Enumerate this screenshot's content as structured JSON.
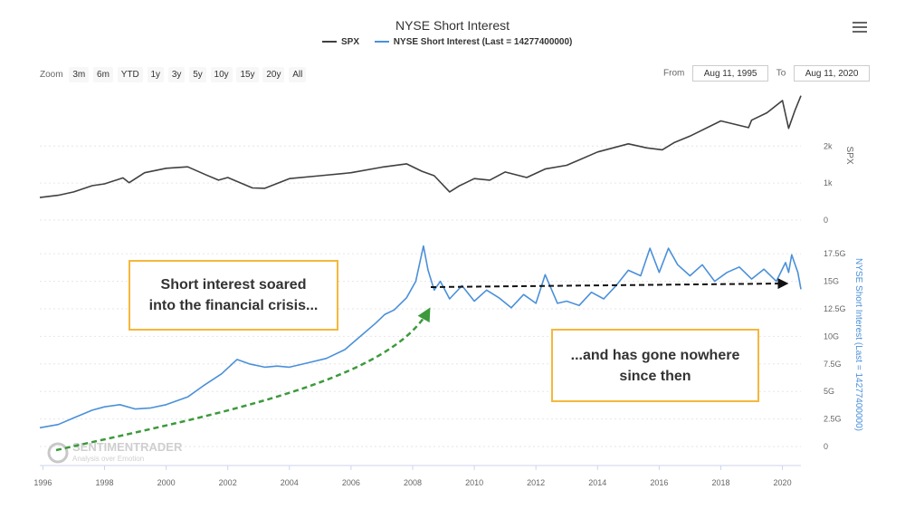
{
  "header": {
    "title": "NYSE Short Interest",
    "menu_icon": "hamburger-menu-icon"
  },
  "legend": {
    "spx_label": "SPX",
    "nyse_label": "NYSE Short Interest (Last = 14277400000)"
  },
  "zoom": {
    "label": "Zoom",
    "buttons": [
      "3m",
      "6m",
      "YTD",
      "1y",
      "3y",
      "5y",
      "10y",
      "15y",
      "20y",
      "All"
    ]
  },
  "range": {
    "from_label": "From",
    "from_value": "Aug 11, 1995",
    "to_label": "To",
    "to_value": "Aug 11, 2020"
  },
  "annotations": {
    "callout1_line1": "Short interest soared",
    "callout1_line2": "into the financial crisis...",
    "callout2_line1": "...and has gone nowhere",
    "callout2_line2": "since then"
  },
  "watermark": {
    "brand": "SENTIMENTRADER",
    "tagline": "Analysis over Emotion"
  },
  "colors": {
    "spx": "#404040",
    "nyse": "#4a90d9",
    "arrow_up": "#3c9a3c",
    "arrow_flat": "#111111",
    "callout_border": "#f5b73b",
    "grid": "#e6e6e6",
    "axis_text": "#666666"
  },
  "chart_data": {
    "type": "line",
    "title": "NYSE Short Interest",
    "x_ticks": [
      "1996",
      "1998",
      "2000",
      "2002",
      "2004",
      "2006",
      "2008",
      "2010",
      "2012",
      "2014",
      "2016",
      "2018",
      "2020"
    ],
    "x_range": [
      1995.9,
      2020.6
    ],
    "panels": [
      {
        "name": "SPX",
        "ylabel": "SPX",
        "ylim": [
          0,
          3500
        ],
        "ticks": [
          {
            "value": 0,
            "label": "0"
          },
          {
            "value": 1000,
            "label": "1k"
          },
          {
            "value": 2000,
            "label": "2k"
          }
        ],
        "series": {
          "name": "SPX",
          "x": [
            1995.9,
            1996.5,
            1997.0,
            1997.6,
            1998.0,
            1998.6,
            1998.8,
            1999.3,
            2000.0,
            2000.7,
            2001.3,
            2001.7,
            2002.0,
            2002.8,
            2003.2,
            2004.0,
            2005.0,
            2006.0,
            2007.0,
            2007.8,
            2008.3,
            2008.7,
            2009.2,
            2009.5,
            2010.0,
            2010.5,
            2011.0,
            2011.7,
            2012.3,
            2013.0,
            2014.0,
            2015.0,
            2015.6,
            2016.1,
            2016.5,
            2017.0,
            2018.0,
            2018.9,
            2019.0,
            2019.5,
            2020.0,
            2020.2,
            2020.4,
            2020.6
          ],
          "values": [
            610,
            670,
            760,
            930,
            980,
            1140,
            1010,
            1280,
            1400,
            1440,
            1220,
            1080,
            1150,
            870,
            860,
            1120,
            1200,
            1280,
            1430,
            1520,
            1320,
            1200,
            760,
            920,
            1120,
            1080,
            1300,
            1150,
            1380,
            1480,
            1840,
            2060,
            1950,
            1900,
            2100,
            2270,
            2680,
            2500,
            2700,
            2900,
            3230,
            2480,
            2950,
            3360
          ]
        }
      },
      {
        "name": "NYSE Short Interest",
        "ylabel": "NYSE Short Interest (Last = 14277400000)",
        "ylim": [
          0,
          18500000000
        ],
        "ticks": [
          {
            "value": 0,
            "label": "0"
          },
          {
            "value": 2500000000,
            "label": "2.5G"
          },
          {
            "value": 5000000000,
            "label": "5G"
          },
          {
            "value": 7500000000,
            "label": "7.5G"
          },
          {
            "value": 10000000000,
            "label": "10G"
          },
          {
            "value": 12500000000,
            "label": "12.5G"
          },
          {
            "value": 15000000000,
            "label": "15G"
          },
          {
            "value": 17500000000,
            "label": "17.5G"
          }
        ],
        "series": {
          "name": "NYSE Short Interest",
          "x": [
            1995.9,
            1996.5,
            1997.0,
            1997.6,
            1998.0,
            1998.5,
            1999.0,
            1999.5,
            2000.0,
            2000.7,
            2001.2,
            2001.8,
            2002.3,
            2002.7,
            2003.2,
            2003.6,
            2004.0,
            2004.6,
            2005.2,
            2005.8,
            2006.3,
            2006.8,
            2007.1,
            2007.4,
            2007.8,
            2008.1,
            2008.35,
            2008.5,
            2008.7,
            2008.9,
            2009.2,
            2009.6,
            2010.0,
            2010.4,
            2010.8,
            2011.2,
            2011.6,
            2012.0,
            2012.3,
            2012.7,
            2013.0,
            2013.4,
            2013.8,
            2014.2,
            2014.6,
            2015.0,
            2015.4,
            2015.7,
            2016.0,
            2016.3,
            2016.6,
            2017.0,
            2017.4,
            2017.8,
            2018.2,
            2018.6,
            2019.0,
            2019.4,
            2019.8,
            2020.1,
            2020.2,
            2020.3,
            2020.5,
            2020.6
          ],
          "values": [
            1700000000,
            2000000000,
            2600000000,
            3300000000,
            3600000000,
            3800000000,
            3400000000,
            3500000000,
            3800000000,
            4500000000,
            5500000000,
            6600000000,
            7900000000,
            7500000000,
            7200000000,
            7300000000,
            7200000000,
            7600000000,
            8000000000,
            8800000000,
            10000000000,
            11200000000,
            12000000000,
            12400000000,
            13500000000,
            15000000000,
            18200000000,
            16000000000,
            14200000000,
            15000000000,
            13400000000,
            14600000000,
            13200000000,
            14200000000,
            13500000000,
            12600000000,
            13800000000,
            13000000000,
            15600000000,
            13000000000,
            13200000000,
            12800000000,
            14000000000,
            13400000000,
            14600000000,
            16000000000,
            15500000000,
            18000000000,
            15800000000,
            18000000000,
            16500000000,
            15500000000,
            16500000000,
            15000000000,
            15800000000,
            16300000000,
            15200000000,
            16100000000,
            15000000000,
            16700000000,
            15800000000,
            17400000000,
            15800000000,
            14277400000
          ]
        }
      }
    ]
  }
}
